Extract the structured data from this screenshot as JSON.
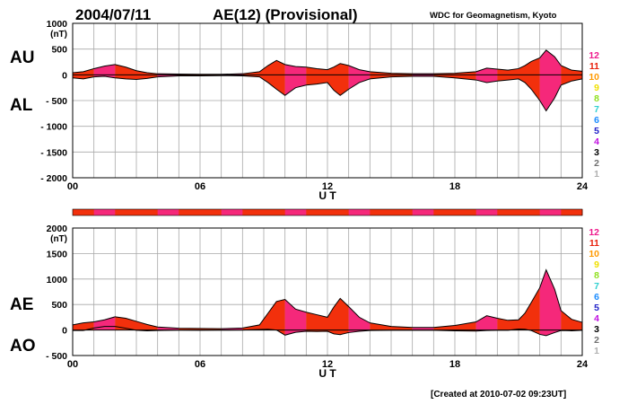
{
  "header": {
    "date": "2004/07/11",
    "title": "AE(12) (Provisional)",
    "source": "WDC for Geomagnetism, Kyoto"
  },
  "footer": {
    "created": "[Created at 2010-07-02 09:23UT]"
  },
  "level_scale": {
    "labels": [
      "12",
      "11",
      "10",
      "9",
      "8",
      "7",
      "6",
      "5",
      "4",
      "3",
      "2",
      "1"
    ],
    "colors": [
      "#ee1a8c",
      "#e8220e",
      "#ff9a00",
      "#f0e000",
      "#90e020",
      "#30d0d0",
      "#1a8cff",
      "#2020c8",
      "#c010e0",
      "#000000",
      "#707070",
      "#b0b0b0"
    ]
  },
  "colors": {
    "fill_primary": "#f5287a",
    "fill_secondary": "#f2300c",
    "outline": "#000000",
    "grid": "#a8a8a8"
  },
  "chart_data": [
    {
      "type": "area",
      "name": "AU/AL",
      "series_labels": [
        "AU",
        "AL"
      ],
      "xlabel": "U T",
      "ylabel_unit": "(nT)",
      "xticks": [
        "00",
        "06",
        "12",
        "18",
        "24"
      ],
      "xlim": [
        0,
        24
      ],
      "ylim": [
        -2000,
        1000
      ],
      "yticks": [
        1000,
        500,
        0,
        -500,
        -1000,
        -1500,
        -2000
      ],
      "ytick_labels": [
        "1000",
        "500",
        "0",
        "- 500",
        "- 1000",
        "- 1500",
        "- 2000"
      ],
      "grid": true,
      "series": [
        {
          "name": "AU",
          "x": [
            0,
            0.5,
            1,
            1.5,
            2,
            2.5,
            3,
            3.5,
            4,
            5,
            6,
            7,
            8,
            8.8,
            9.2,
            9.6,
            10,
            10.5,
            11,
            11.5,
            12,
            12.3,
            12.6,
            13,
            13.5,
            14,
            15,
            16,
            17,
            18,
            19,
            19.5,
            20,
            20.5,
            21,
            21.3,
            21.6,
            22,
            22.3,
            22.7,
            23,
            23.5,
            24
          ],
          "values": [
            40,
            60,
            120,
            170,
            200,
            150,
            80,
            40,
            20,
            15,
            10,
            10,
            20,
            60,
            180,
            280,
            200,
            160,
            150,
            120,
            100,
            150,
            220,
            180,
            100,
            60,
            30,
            20,
            20,
            30,
            60,
            130,
            110,
            90,
            120,
            180,
            260,
            330,
            480,
            350,
            180,
            90,
            70
          ]
        },
        {
          "name": "AL",
          "x": [
            0,
            0.5,
            1,
            1.5,
            2,
            2.5,
            3,
            3.5,
            4,
            5,
            6,
            7,
            8,
            8.8,
            9.2,
            9.6,
            10,
            10.5,
            11,
            11.5,
            12,
            12.3,
            12.6,
            13,
            13.5,
            14,
            15,
            16,
            17,
            18,
            19,
            19.5,
            20,
            20.5,
            21,
            21.3,
            21.6,
            22,
            22.3,
            22.7,
            23,
            23.5,
            24
          ],
          "values": [
            -60,
            -80,
            -40,
            -30,
            -60,
            -80,
            -90,
            -70,
            -40,
            -20,
            -20,
            -15,
            -20,
            -40,
            -150,
            -280,
            -400,
            -250,
            -200,
            -180,
            -150,
            -300,
            -400,
            -280,
            -150,
            -80,
            -40,
            -30,
            -30,
            -60,
            -100,
            -150,
            -120,
            -100,
            -80,
            -150,
            -280,
            -500,
            -700,
            -450,
            -200,
            -120,
            -80
          ]
        }
      ]
    },
    {
      "type": "area",
      "name": "AE/AO",
      "series_labels": [
        "AE",
        "AO"
      ],
      "xlabel": "U T",
      "ylabel_unit": "(nT)",
      "xticks": [
        "00",
        "06",
        "12",
        "18",
        "24"
      ],
      "xlim": [
        0,
        24
      ],
      "ylim": [
        -500,
        2000
      ],
      "yticks": [
        2000,
        1500,
        1000,
        500,
        0,
        -500
      ],
      "ytick_labels": [
        "2000",
        "1500",
        "1000",
        "500",
        "0",
        "- 500"
      ],
      "grid": true,
      "series": [
        {
          "name": "AE",
          "x": [
            0,
            0.5,
            1,
            1.5,
            2,
            2.5,
            3,
            3.5,
            4,
            5,
            6,
            7,
            8,
            8.8,
            9.2,
            9.6,
            10,
            10.5,
            11,
            11.5,
            12,
            12.3,
            12.6,
            13,
            13.5,
            14,
            15,
            16,
            17,
            18,
            19,
            19.5,
            20,
            20.5,
            21,
            21.3,
            21.6,
            22,
            22.3,
            22.7,
            23,
            23.5,
            24
          ],
          "values": [
            100,
            140,
            160,
            200,
            260,
            230,
            170,
            110,
            60,
            35,
            30,
            25,
            40,
            100,
            330,
            560,
            600,
            410,
            350,
            300,
            250,
            450,
            620,
            460,
            250,
            140,
            70,
            50,
            50,
            90,
            160,
            280,
            230,
            190,
            200,
            330,
            540,
            830,
            1180,
            800,
            380,
            210,
            150
          ]
        },
        {
          "name": "AO",
          "x": [
            0,
            0.5,
            1,
            1.5,
            2,
            2.5,
            3,
            3.5,
            4,
            5,
            6,
            7,
            8,
            8.8,
            9.2,
            9.6,
            10,
            10.5,
            11,
            11.5,
            12,
            12.3,
            12.6,
            13,
            13.5,
            14,
            15,
            16,
            17,
            18,
            19,
            19.5,
            20,
            20.5,
            21,
            21.3,
            21.6,
            22,
            22.3,
            22.7,
            23,
            23.5,
            24
          ],
          "values": [
            -10,
            -10,
            40,
            70,
            70,
            35,
            -5,
            -15,
            -10,
            -3,
            -5,
            -3,
            0,
            10,
            15,
            0,
            -100,
            -45,
            -25,
            -30,
            -25,
            -75,
            -90,
            -50,
            -25,
            -10,
            -5,
            -5,
            -5,
            -15,
            -20,
            -10,
            -5,
            -5,
            20,
            15,
            -10,
            -85,
            -110,
            -50,
            -10,
            -15,
            -5
          ]
        }
      ]
    }
  ]
}
